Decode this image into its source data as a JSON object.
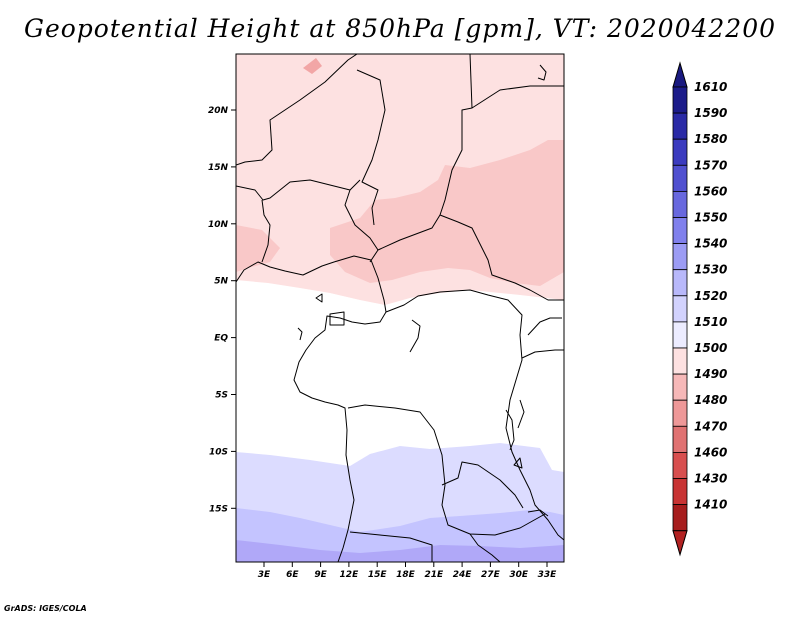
{
  "title": "Geopotential Height at 850hPa [gpm], VT: 2020042200",
  "credit": "GrADS: IGES/COLA",
  "map": {
    "lat_labels": [
      "20N",
      "15N",
      "10N",
      "5N",
      "EQ",
      "5S",
      "10S",
      "15S"
    ],
    "lon_labels": [
      "3E",
      "6E",
      "9E",
      "12E",
      "15E",
      "18E",
      "21E",
      "24E",
      "27E",
      "30E",
      "33E"
    ],
    "field_colors": {
      "warm_light": "#fde1e1",
      "warm_mid": "#f9c8c8",
      "warm_deep": "#f2a6a6",
      "neutral": "#ffffff",
      "cool_light": "#dcdcff",
      "cool_mid": "#c4c4ff",
      "cool_deep": "#b0a8f8"
    }
  },
  "colorbar": {
    "labels": [
      "1610",
      "1590",
      "1580",
      "1570",
      "1560",
      "1550",
      "1540",
      "1530",
      "1520",
      "1510",
      "1500",
      "1490",
      "1480",
      "1470",
      "1460",
      "1430",
      "1410"
    ],
    "colors": [
      "#1c1c8a",
      "#2a2aa6",
      "#3b3bbf",
      "#5050d0",
      "#6868de",
      "#8080ec",
      "#9c9cf4",
      "#b8b8fa",
      "#d2d2fd",
      "#ececff",
      "#fde1e1",
      "#f6b8b8",
      "#ee9898",
      "#e07272",
      "#d84f4f",
      "#c83434",
      "#a61d1d"
    ],
    "top_arrow_color": "#1a1a80",
    "bottom_arrow_color": "#b22222"
  }
}
